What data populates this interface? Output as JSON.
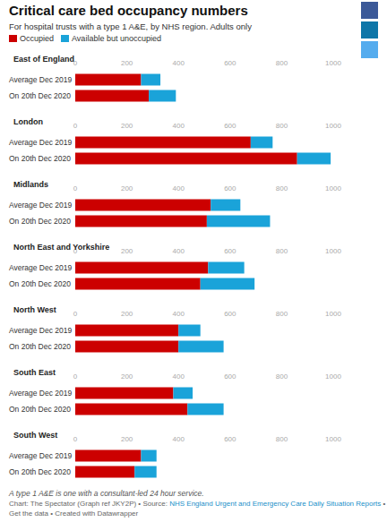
{
  "title": "Critical care bed occupancy numbers",
  "subtitle": "For hospital trusts with a type 1 A&E, by NHS region. Adults only",
  "footnote": "A type 1 A&E is one with a consultant-led 24 hour service.",
  "source_line": [
    "Chart: The Spectator (Graph ref JKY2P) • Source: ",
    "NHS England Urgent and Emergency Care Daily Situation Reports",
    " •"
  ],
  "links_line": "Get the data • Created with Datawrapper",
  "chart_data": [
    {
      "type": "bar",
      "title": "East of England",
      "orientation": "horizontal",
      "stacked": true,
      "legend": "top-left",
      "grid": false,
      "categories": [
        "Average Dec 2019",
        "On 20th Dec 2020"
      ],
      "series": [
        {
          "name": "Occupied",
          "color": "#cc0000",
          "values": [
            255,
            285
          ]
        },
        {
          "name": "Available but unoccupied",
          "color": "#1aa3d9",
          "values": [
            75,
            105
          ]
        }
      ],
      "xlim": [
        0,
        1000
      ],
      "xticks": [
        0,
        200,
        400,
        600,
        800,
        1000
      ]
    },
    {
      "type": "bar",
      "title": "London",
      "orientation": "horizontal",
      "stacked": true,
      "grid": false,
      "categories": [
        "Average Dec 2019",
        "On 20th Dec 2020"
      ],
      "series": [
        {
          "name": "Occupied",
          "color": "#cc0000",
          "values": [
            680,
            860
          ]
        },
        {
          "name": "Available but unoccupied",
          "color": "#1aa3d9",
          "values": [
            85,
            130
          ]
        }
      ],
      "xlim": [
        0,
        1000
      ],
      "xticks": [
        0,
        200,
        400,
        600,
        800,
        1000
      ]
    },
    {
      "type": "bar",
      "title": "Midlands",
      "orientation": "horizontal",
      "stacked": true,
      "grid": false,
      "categories": [
        "Average Dec 2019",
        "On 20th Dec 2020"
      ],
      "series": [
        {
          "name": "Occupied",
          "color": "#cc0000",
          "values": [
            525,
            510
          ]
        },
        {
          "name": "Available but unoccupied",
          "color": "#1aa3d9",
          "values": [
            115,
            245
          ]
        }
      ],
      "xlim": [
        0,
        1000
      ],
      "xticks": [
        0,
        200,
        400,
        600,
        800,
        1000
      ]
    },
    {
      "type": "bar",
      "title": "North East and Yorkshire",
      "orientation": "horizontal",
      "stacked": true,
      "grid": false,
      "categories": [
        "Average Dec 2019",
        "On 20th Dec 2020"
      ],
      "series": [
        {
          "name": "Occupied",
          "color": "#cc0000",
          "values": [
            515,
            485
          ]
        },
        {
          "name": "Available but unoccupied",
          "color": "#1aa3d9",
          "values": [
            140,
            210
          ]
        }
      ],
      "xlim": [
        0,
        1000
      ],
      "xticks": [
        0,
        200,
        400,
        600,
        800,
        1000
      ]
    },
    {
      "type": "bar",
      "title": "North West",
      "orientation": "horizontal",
      "stacked": true,
      "grid": false,
      "categories": [
        "Average Dec 2019",
        "On 20th Dec 2020"
      ],
      "series": [
        {
          "name": "Occupied",
          "color": "#cc0000",
          "values": [
            400,
            400
          ]
        },
        {
          "name": "Available but unoccupied",
          "color": "#1aa3d9",
          "values": [
            85,
            175
          ]
        }
      ],
      "xlim": [
        0,
        1000
      ],
      "xticks": [
        0,
        200,
        400,
        600,
        800,
        1000
      ]
    },
    {
      "type": "bar",
      "title": "South East",
      "orientation": "horizontal",
      "stacked": true,
      "grid": false,
      "categories": [
        "Average Dec 2019",
        "On 20th Dec 2020"
      ],
      "series": [
        {
          "name": "Occupied",
          "color": "#cc0000",
          "values": [
            380,
            435
          ]
        },
        {
          "name": "Available but unoccupied",
          "color": "#1aa3d9",
          "values": [
            75,
            140
          ]
        }
      ],
      "xlim": [
        0,
        1000
      ],
      "xticks": [
        0,
        200,
        400,
        600,
        800,
        1000
      ]
    },
    {
      "type": "bar",
      "title": "South West",
      "orientation": "horizontal",
      "stacked": true,
      "grid": false,
      "categories": [
        "Average Dec 2019",
        "On 20th Dec 2020"
      ],
      "series": [
        {
          "name": "Occupied",
          "color": "#cc0000",
          "values": [
            255,
            230
          ]
        },
        {
          "name": "Available but unoccupied",
          "color": "#1aa3d9",
          "values": [
            60,
            85
          ]
        }
      ],
      "xlim": [
        0,
        1000
      ],
      "xticks": [
        0,
        200,
        400,
        600,
        800,
        1000
      ]
    }
  ]
}
